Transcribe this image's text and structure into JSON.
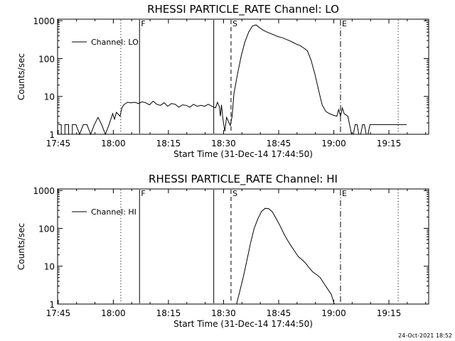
{
  "footer_timestamp": "24-Oct-2021 18:52",
  "line_color": "#000000",
  "chart_data": [
    {
      "type": "line",
      "title": "RHESSI PARTICLE_RATE Channel: LO",
      "xlabel": "Start Time (31-Dec-14 17:44:50)",
      "ylabel": "Counts/sec",
      "y_scale": "log",
      "x_unit": "minutes since 17:44:50",
      "xlim": [
        0,
        101
      ],
      "ylim": [
        1,
        1100
      ],
      "xticks": [
        {
          "v": 0.17,
          "label": "17:45"
        },
        {
          "v": 15.17,
          "label": "18:00"
        },
        {
          "v": 30.17,
          "label": "18:15"
        },
        {
          "v": 45.17,
          "label": "18:30"
        },
        {
          "v": 60.17,
          "label": "18:45"
        },
        {
          "v": 75.17,
          "label": "19:00"
        },
        {
          "v": 90.17,
          "label": "19:15"
        }
      ],
      "yticks": [
        {
          "v": 1,
          "label": "1"
        },
        {
          "v": 10,
          "label": "10"
        },
        {
          "v": 100,
          "label": "100"
        },
        {
          "v": 1000,
          "label": "1000"
        }
      ],
      "markers": [
        {
          "x": 17.2,
          "style": "dotted",
          "label": ""
        },
        {
          "x": 22.3,
          "style": "solid",
          "label": "F"
        },
        {
          "x": 42.5,
          "style": "solid",
          "label": ""
        },
        {
          "x": 47.2,
          "style": "dashed",
          "label": "S"
        },
        {
          "x": 77.0,
          "style": "dashdot",
          "label": "E"
        },
        {
          "x": 92.7,
          "style": "dotted",
          "label": ""
        }
      ],
      "legend": {
        "label": "Channel: LO",
        "position": "top-left"
      },
      "series": [
        {
          "x": [
            0.2,
            1.0,
            1.0,
            2.0,
            2.0,
            3.0,
            3.0,
            4.0,
            4.0,
            5.0,
            5.0,
            6.0,
            6.0,
            7.0,
            7.0,
            8.0,
            8.0,
            9.0,
            9.0,
            10.0,
            10.0,
            11.0,
            11.0,
            12.0,
            12.0,
            13.0,
            13.0,
            14.0,
            14.0,
            15.0,
            15.0,
            15.5,
            15.5,
            16.0,
            16.0,
            17.0,
            17.0,
            17.5,
            17.5,
            18.0,
            19.0,
            20.0,
            21.0,
            22.0,
            23.0,
            24.0,
            25.0,
            26.0,
            27.0,
            28.0,
            29.0,
            30.0,
            31.0,
            32.0,
            33.0,
            34.0,
            35.0,
            36.0,
            37.0,
            38.0,
            39.0,
            40.0,
            41.0,
            42.0,
            43.0,
            43.5,
            44.0,
            44.3,
            44.6,
            45.0,
            45.5,
            46.0,
            47.0,
            47.5,
            48.0,
            49.0,
            50.0,
            51.0,
            52.0,
            53.0,
            54.0,
            55.0,
            56.0,
            57.0,
            58.0,
            59.0,
            60.0,
            61.0,
            62.0,
            63.0,
            64.0,
            65.0,
            66.0,
            67.0,
            68.0,
            69.0,
            70.0,
            71.0,
            72.0,
            73.0,
            74.0,
            75.0,
            76.0,
            76.5,
            77.0,
            77.5,
            78.0,
            79.0,
            80.0,
            80.5,
            81.0,
            81.5,
            82.0,
            82.5,
            83.0,
            83.5,
            84.0,
            84.5,
            85.0,
            85.5,
            86.0,
            87.0,
            88.0,
            89.0,
            90.0,
            91.0,
            92.0,
            93.0,
            94.0,
            95.0
          ],
          "y": [
            1.8,
            1.8,
            1,
            1,
            1.8,
            1.8,
            1,
            1,
            1.8,
            1.8,
            1.8,
            1,
            1,
            1.8,
            1.8,
            1.8,
            1.8,
            1,
            1,
            1.8,
            1.8,
            2.8,
            2.8,
            1.8,
            1.8,
            1,
            1,
            1.8,
            1.8,
            3.5,
            3.5,
            2.5,
            2.5,
            3.8,
            3.8,
            3.0,
            3.0,
            5.0,
            5.0,
            6.0,
            7.0,
            6.8,
            7.0,
            6.5,
            7.2,
            6.8,
            6.0,
            7.5,
            6.2,
            5.8,
            6.8,
            5.5,
            6.5,
            6.2,
            5.2,
            6.0,
            5.8,
            5.2,
            6.2,
            5.5,
            5.8,
            5.5,
            6.2,
            5.5,
            5.0,
            7.0,
            5.5,
            3.0,
            6.0,
            2.5,
            1.2,
            2.8,
            1.7,
            3.0,
            12,
            40,
            120,
            280,
            500,
            720,
            780,
            650,
            560,
            500,
            460,
            420,
            380,
            360,
            330,
            300,
            270,
            240,
            220,
            190,
            160,
            90,
            40,
            15,
            6,
            4,
            3.5,
            3.2,
            3.0,
            4.5,
            3.0,
            5.0,
            3.5,
            3.0,
            1,
            1,
            1.8,
            1.8,
            1,
            1,
            1.8,
            1.8,
            1,
            1,
            1.8,
            1.8,
            1.8,
            1.8,
            1.8,
            1.8,
            1.8,
            1.8,
            1.8,
            1.8,
            1.8,
            1.8
          ]
        }
      ]
    },
    {
      "type": "line",
      "title": "RHESSI PARTICLE_RATE Channel: HI",
      "xlabel": "Start Time (31-Dec-14 17:44:50)",
      "ylabel": "Counts/sec",
      "y_scale": "log",
      "x_unit": "minutes since 17:44:50",
      "xlim": [
        0,
        101
      ],
      "ylim": [
        1,
        1100
      ],
      "xticks": [
        {
          "v": 0.17,
          "label": "17:45"
        },
        {
          "v": 15.17,
          "label": "18:00"
        },
        {
          "v": 30.17,
          "label": "18:15"
        },
        {
          "v": 45.17,
          "label": "18:30"
        },
        {
          "v": 60.17,
          "label": "18:45"
        },
        {
          "v": 75.17,
          "label": "19:00"
        },
        {
          "v": 90.17,
          "label": "19:15"
        }
      ],
      "yticks": [
        {
          "v": 1,
          "label": "1"
        },
        {
          "v": 10,
          "label": "10"
        },
        {
          "v": 100,
          "label": "100"
        },
        {
          "v": 1000,
          "label": "1000"
        }
      ],
      "markers": [
        {
          "x": 17.2,
          "style": "dotted",
          "label": ""
        },
        {
          "x": 22.3,
          "style": "solid",
          "label": "F"
        },
        {
          "x": 42.5,
          "style": "solid",
          "label": ""
        },
        {
          "x": 47.2,
          "style": "dashed",
          "label": "S"
        },
        {
          "x": 77.0,
          "style": "dashdot",
          "label": "E"
        },
        {
          "x": 92.7,
          "style": "dotted",
          "label": ""
        }
      ],
      "legend": {
        "label": "Channel: HI",
        "position": "top-left"
      },
      "series": [
        {
          "x": [
            48.7,
            49.5,
            50.5,
            51.5,
            52.5,
            53.5,
            54.5,
            55.5,
            56.5,
            57.5,
            58.5,
            59.5,
            60.5,
            61.5,
            62.5,
            63.5,
            64.5,
            65.5,
            66.5,
            67.5,
            68.5,
            69.5,
            70.5,
            71.5,
            72.5,
            73.5,
            74.5,
            75.3
          ],
          "y": [
            1,
            2,
            5,
            14,
            40,
            100,
            180,
            280,
            340,
            330,
            270,
            180,
            120,
            75,
            50,
            35,
            25,
            18,
            15,
            12,
            9,
            7,
            6,
            5,
            3.5,
            2.5,
            1.8,
            1
          ]
        }
      ]
    }
  ]
}
